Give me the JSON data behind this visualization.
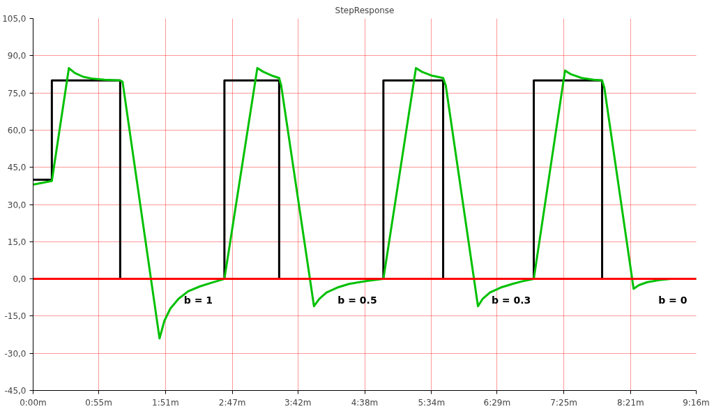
{
  "chart_data": {
    "type": "line",
    "title": "StepResponse",
    "xlim": [
      0,
      556
    ],
    "ylim": [
      -45,
      105
    ],
    "xticks": [
      {
        "value": 0,
        "label": "0:00m"
      },
      {
        "value": 55,
        "label": "0:55m"
      },
      {
        "value": 111,
        "label": "1:51m"
      },
      {
        "value": 167,
        "label": "2:47m"
      },
      {
        "value": 222,
        "label": "3:42m"
      },
      {
        "value": 278,
        "label": "4:38m"
      },
      {
        "value": 334,
        "label": "5:34m"
      },
      {
        "value": 389,
        "label": "6:29m"
      },
      {
        "value": 445,
        "label": "7:25m"
      },
      {
        "value": 501,
        "label": "8:21m"
      },
      {
        "value": 556,
        "label": "9:16m"
      }
    ],
    "yticks": [
      {
        "value": -45,
        "label": "-45,0"
      },
      {
        "value": -30,
        "label": "-30,0"
      },
      {
        "value": -15,
        "label": "-15,0"
      },
      {
        "value": 0,
        "label": "0,0"
      },
      {
        "value": 15,
        "label": "15,0"
      },
      {
        "value": 30,
        "label": "30,0"
      },
      {
        "value": 45,
        "label": "45,0"
      },
      {
        "value": 60,
        "label": "60,0"
      },
      {
        "value": 75,
        "label": "75,0"
      },
      {
        "value": 90,
        "label": "90,0"
      },
      {
        "value": 105,
        "label": "105,0"
      }
    ],
    "grid": true,
    "line_style": "solid",
    "marker": "none",
    "ref_lines": [
      {
        "axis": "y",
        "value": 0,
        "label": null,
        "color": "#ff0000"
      }
    ],
    "series": [
      {
        "type": "step",
        "color": "#000000",
        "x": [
          0,
          15.7,
          73,
          160.4,
          206.3,
          293.7,
          343.8,
          419.8,
          477.1,
          556
        ],
        "values": [
          40,
          80,
          0,
          80,
          0,
          80,
          0,
          80,
          0,
          0
        ]
      },
      {
        "color": "#00c000",
        "x": [
          0,
          15.7,
          30,
          35,
          42,
          50,
          60,
          73,
          75,
          106,
          110,
          115,
          122,
          130,
          140,
          150,
          160.4,
          188,
          193,
          200,
          206.3,
          208,
          235.5,
          240,
          246,
          255,
          265,
          280,
          293.7,
          321,
          326,
          334,
          343.8,
          346,
          373,
          377,
          383,
          392,
          402,
          410,
          419.8,
          446,
          451,
          460,
          470,
          477.1,
          479,
          503.5,
          508,
          515,
          525,
          535,
          556
        ],
        "values": [
          38,
          39.5,
          85,
          83,
          81.5,
          80.7,
          80.3,
          80,
          79.5,
          -24,
          -17,
          -12,
          -8,
          -5,
          -3,
          -1.5,
          0,
          85,
          83.5,
          82,
          81,
          78,
          -11,
          -8,
          -5.5,
          -3.5,
          -2,
          -0.8,
          0,
          85,
          83.5,
          82,
          81,
          78,
          -11,
          -8,
          -5.5,
          -3.5,
          -2,
          -1,
          0,
          84,
          82.5,
          81,
          80.3,
          80,
          77,
          -4,
          -2.5,
          -1.3,
          -0.5,
          0,
          0
        ]
      }
    ],
    "annotations": [
      "b = 1",
      "b = 0.5",
      "b = 0.3",
      "b = 0"
    ]
  }
}
